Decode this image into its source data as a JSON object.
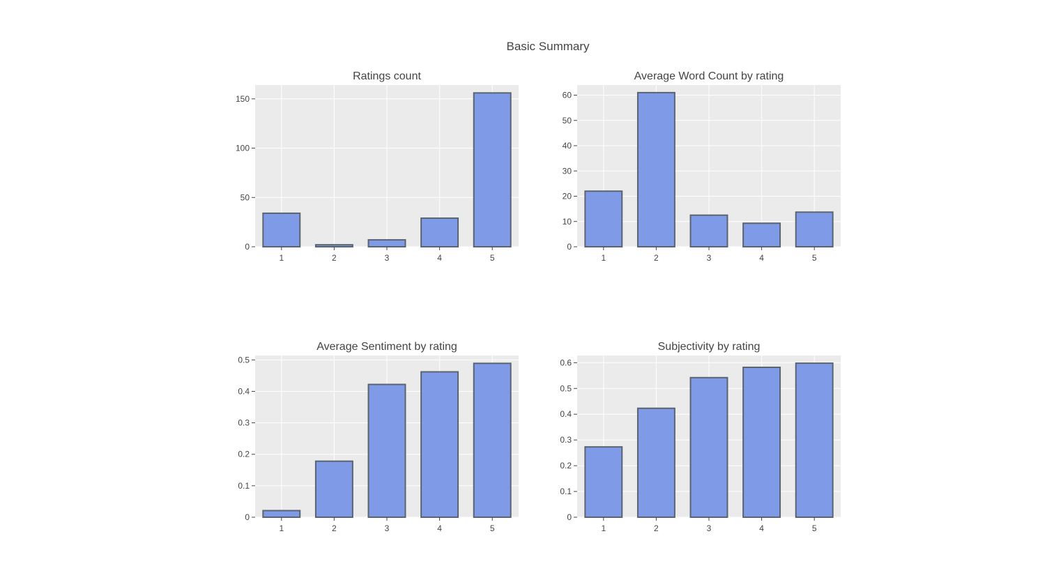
{
  "page_title": "Basic Summary",
  "colors": {
    "bar_fill": "#7f9be8",
    "bar_stroke": "#5a6470",
    "plot_background": "#ebebeb",
    "grid": "#ffffff",
    "text": "#444444"
  },
  "chart_data": [
    {
      "type": "bar",
      "title": "Ratings count",
      "categories": [
        "1",
        "2",
        "3",
        "4",
        "5"
      ],
      "values": [
        34,
        2,
        7,
        29,
        156
      ],
      "ylim": [
        0,
        164
      ],
      "yticks": [
        0,
        50,
        100,
        150
      ],
      "ytick_labels": [
        "0",
        "50",
        "100",
        "150"
      ],
      "grid": true
    },
    {
      "type": "bar",
      "title": "Average Word Count by rating",
      "categories": [
        "1",
        "2",
        "3",
        "4",
        "5"
      ],
      "values": [
        22,
        61,
        12.5,
        9.3,
        13.7
      ],
      "ylim": [
        0,
        64
      ],
      "yticks": [
        0,
        10,
        20,
        30,
        40,
        50,
        60
      ],
      "ytick_labels": [
        "0",
        "10",
        "20",
        "30",
        "40",
        "50",
        "60"
      ],
      "grid": true
    },
    {
      "type": "bar",
      "title": "Average Sentiment by rating",
      "categories": [
        "1",
        "2",
        "3",
        "4",
        "5"
      ],
      "values": [
        0.021,
        0.178,
        0.422,
        0.462,
        0.489
      ],
      "ylim": [
        0,
        0.514
      ],
      "yticks": [
        0,
        0.1,
        0.2,
        0.3,
        0.4,
        0.5
      ],
      "ytick_labels": [
        "0",
        "0.1",
        "0.2",
        "0.3",
        "0.4",
        "0.5"
      ],
      "grid": true
    },
    {
      "type": "bar",
      "title": "Subjectivity by rating",
      "categories": [
        "1",
        "2",
        "3",
        "4",
        "5"
      ],
      "values": [
        0.273,
        0.423,
        0.542,
        0.582,
        0.598
      ],
      "ylim": [
        0,
        0.628
      ],
      "yticks": [
        0,
        0.1,
        0.2,
        0.3,
        0.4,
        0.5,
        0.6
      ],
      "ytick_labels": [
        "0",
        "0.1",
        "0.2",
        "0.3",
        "0.4",
        "0.5",
        "0.6"
      ],
      "grid": true
    }
  ]
}
